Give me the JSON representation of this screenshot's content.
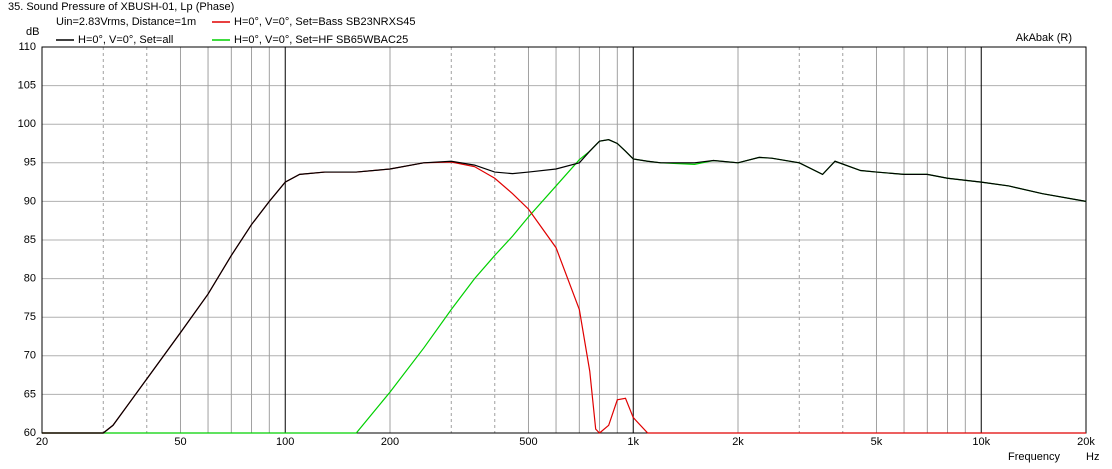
{
  "chart_data": {
    "type": "line",
    "title": "35. Sound Pressure of XBUSH-01, Lp (Phase)",
    "subtitle": "Uin=2.83Vrms, Distance=1m",
    "ylabel": "dB",
    "xlabel": "Frequency",
    "xunit": "Hz",
    "watermark": "AkAbak (R)",
    "xscale": "log",
    "grid": true,
    "xlim": [
      20,
      20000
    ],
    "ylim": [
      60,
      110
    ],
    "xticks": [
      20,
      50,
      100,
      200,
      500,
      {
        "value": 1000,
        "label": "1k"
      },
      {
        "value": 2000,
        "label": "2k"
      },
      {
        "value": 5000,
        "label": "5k"
      },
      {
        "value": 10000,
        "label": "10k"
      },
      {
        "value": 20000,
        "label": "20k"
      }
    ],
    "x_minor_grid": [
      30,
      40,
      60,
      70,
      80,
      90,
      300,
      400,
      600,
      700,
      800,
      900,
      3000,
      4000,
      6000,
      7000,
      8000,
      9000
    ],
    "yticks": [
      60,
      65,
      70,
      75,
      80,
      85,
      90,
      95,
      100,
      105,
      110
    ],
    "x": [
      20,
      30,
      32,
      40,
      50,
      60,
      70,
      80,
      90,
      100,
      110,
      130,
      150,
      160,
      200,
      250,
      300,
      350,
      400,
      450,
      500,
      600,
      700,
      750,
      780,
      800,
      850,
      900,
      950,
      1000,
      1100,
      1200,
      1500,
      1700,
      2000,
      2300,
      2500,
      3000,
      3500,
      3800,
      4500,
      5000,
      6000,
      7000,
      8000,
      10000,
      12000,
      15000,
      20000
    ],
    "series": [
      {
        "name": "H=0°, V=0°, Set=all",
        "color": "#000000",
        "values": [
          60,
          60,
          61,
          67,
          73,
          78,
          83,
          87,
          90,
          92.5,
          93.5,
          93.8,
          93.8,
          93.8,
          94.2,
          95,
          95.2,
          94.7,
          93.8,
          93.6,
          93.8,
          94.2,
          95,
          96.5,
          97.3,
          97.8,
          98,
          97.5,
          96.5,
          95.5,
          95.2,
          95,
          95,
          95.3,
          95,
          95.7,
          95.6,
          95,
          93.5,
          95.2,
          94,
          93.8,
          93.5,
          93.5,
          93,
          92.5,
          92,
          91,
          90
        ]
      },
      {
        "name": "H=0°, V=0°, Set=Bass SB23NRXS45",
        "color": "#e00000",
        "values": [
          60,
          60,
          61,
          67,
          73,
          78,
          83,
          87,
          90,
          92.5,
          93.5,
          93.8,
          93.8,
          93.8,
          94.2,
          95,
          95.1,
          94.5,
          93,
          91,
          89,
          84,
          76,
          68,
          60.5,
          60,
          61,
          64.3,
          64.5,
          62,
          60,
          60,
          60,
          60,
          60,
          60,
          60,
          60,
          60,
          60,
          60,
          60,
          60,
          60,
          60,
          60,
          60,
          60,
          60
        ]
      },
      {
        "name": "H=0°, V=0°, Set=HF SB65WBAC25",
        "color": "#00d000",
        "values": [
          60,
          60,
          60,
          60,
          60,
          60,
          60,
          60,
          60,
          60,
          60,
          60,
          60,
          60,
          65.3,
          71,
          76,
          80,
          83,
          85.5,
          88,
          92,
          95.4,
          96.5,
          97.3,
          97.8,
          98,
          97.5,
          96.5,
          95.5,
          95.2,
          95,
          94.8,
          95.3,
          95,
          95.7,
          95.6,
          95,
          93.5,
          95.2,
          94,
          93.8,
          93.5,
          93.5,
          93,
          92.5,
          92,
          91,
          90
        ]
      }
    ]
  }
}
